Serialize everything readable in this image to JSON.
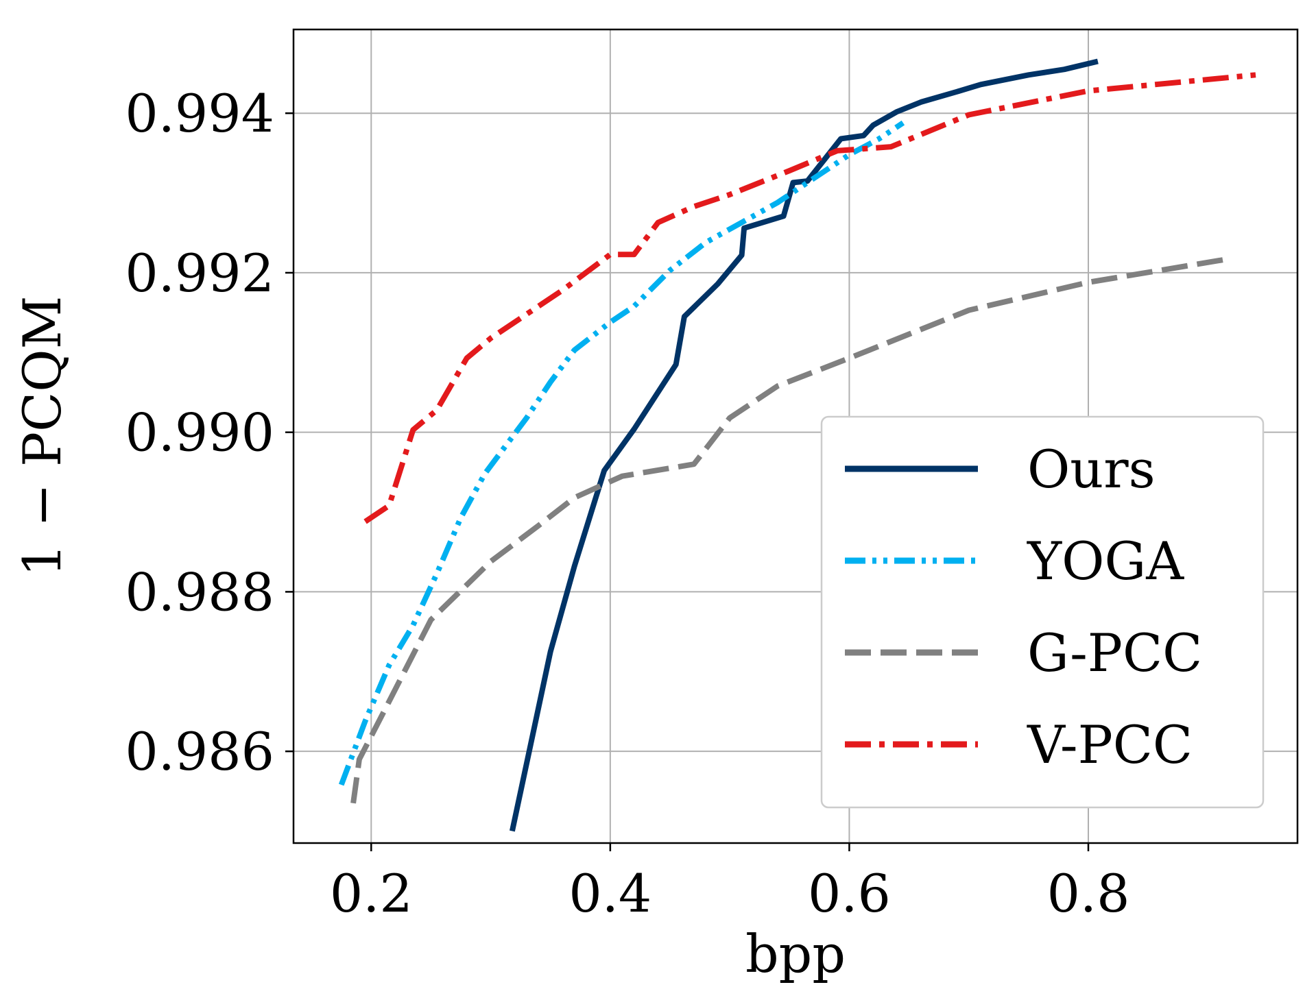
{
  "chart_data": {
    "type": "line",
    "xlabel": "bpp",
    "ylabel": "1 − PCQM",
    "xlim": [
      0.135,
      0.975
    ],
    "ylim": [
      0.98485,
      0.99505
    ],
    "xticks": [
      0.2,
      0.4,
      0.6,
      0.8
    ],
    "xtick_labels": [
      "0.2",
      "0.4",
      "0.6",
      "0.8"
    ],
    "yticks": [
      0.986,
      0.988,
      0.99,
      0.992,
      0.994
    ],
    "ytick_labels": [
      "0.986",
      "0.988",
      "0.990",
      "0.992",
      "0.994"
    ],
    "grid": true,
    "legend_position": "lower-right",
    "series": [
      {
        "name": "Ours",
        "color": "#003366",
        "dash": "solid",
        "x": [
          0.318,
          0.35,
          0.37,
          0.395,
          0.42,
          0.455,
          0.462,
          0.49,
          0.51,
          0.512,
          0.545,
          0.553,
          0.565,
          0.575,
          0.593,
          0.612,
          0.62,
          0.64,
          0.66,
          0.69,
          0.71,
          0.75,
          0.78,
          0.808
        ],
        "y": [
          0.985,
          0.98725,
          0.98832,
          0.98952,
          0.99004,
          0.99085,
          0.99145,
          0.99186,
          0.99222,
          0.99256,
          0.99271,
          0.99313,
          0.99315,
          0.99334,
          0.99368,
          0.99372,
          0.99385,
          0.99402,
          0.99414,
          0.99427,
          0.99436,
          0.99448,
          0.99455,
          0.99465
        ]
      },
      {
        "name": "YOGA",
        "color": "#00b0f0",
        "dash": "dashdotdot",
        "x": [
          0.175,
          0.195,
          0.215,
          0.235,
          0.255,
          0.275,
          0.295,
          0.315,
          0.33,
          0.35,
          0.37,
          0.4,
          0.42,
          0.45,
          0.48,
          0.51,
          0.54,
          0.57,
          0.6,
          0.625,
          0.645
        ],
        "y": [
          0.98558,
          0.98638,
          0.98708,
          0.98758,
          0.98823,
          0.98893,
          0.98948,
          0.98988,
          0.99018,
          0.99063,
          0.99103,
          0.99138,
          0.99158,
          0.99203,
          0.99238,
          0.99263,
          0.99288,
          0.99318,
          0.99348,
          0.99368,
          0.99388
        ]
      },
      {
        "name": "G-PCC",
        "color": "#808080",
        "dash": "dashed",
        "x": [
          0.185,
          0.19,
          0.21,
          0.25,
          0.3,
          0.34,
          0.37,
          0.41,
          0.47,
          0.5,
          0.54,
          0.6,
          0.65,
          0.7,
          0.8,
          0.92
        ],
        "y": [
          0.98535,
          0.9859,
          0.98648,
          0.98765,
          0.98838,
          0.98883,
          0.98918,
          0.98945,
          0.9896,
          0.99018,
          0.99058,
          0.99093,
          0.99123,
          0.99153,
          0.99188,
          0.99218
        ]
      },
      {
        "name": "V-PCC",
        "color": "#e31a1c",
        "dash": "dashdot",
        "x": [
          0.195,
          0.215,
          0.235,
          0.255,
          0.28,
          0.3,
          0.33,
          0.36,
          0.4,
          0.42,
          0.44,
          0.47,
          0.5,
          0.55,
          0.59,
          0.635,
          0.7,
          0.8,
          0.94
        ],
        "y": [
          0.98888,
          0.98908,
          0.99003,
          0.99028,
          0.99093,
          0.99118,
          0.99148,
          0.99178,
          0.99223,
          0.99223,
          0.99263,
          0.99283,
          0.99298,
          0.99328,
          0.99353,
          0.99358,
          0.99398,
          0.99428,
          0.99448
        ]
      }
    ]
  }
}
